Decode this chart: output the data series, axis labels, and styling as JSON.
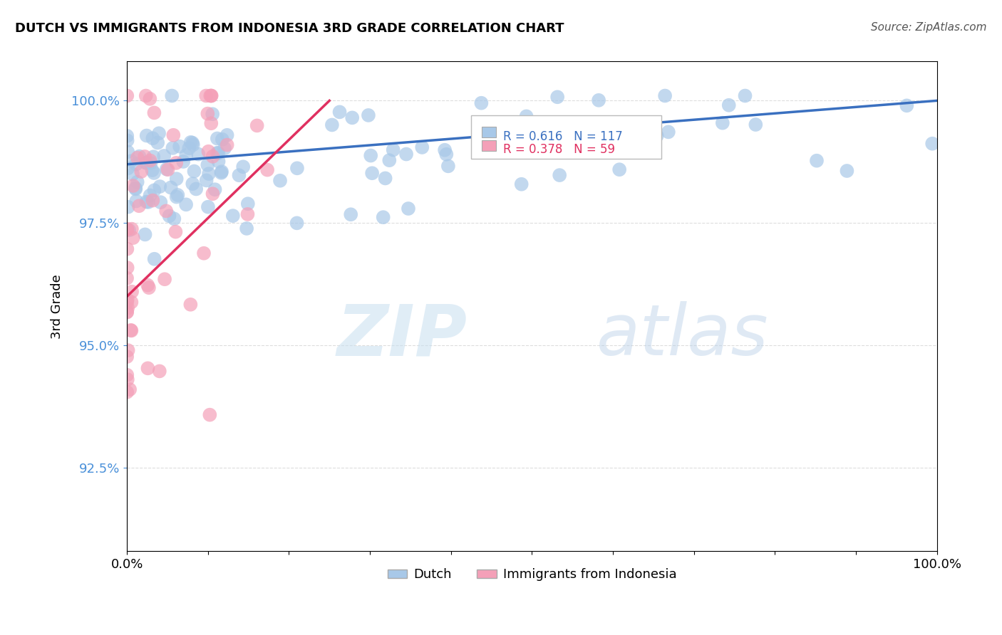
{
  "title": "DUTCH VS IMMIGRANTS FROM INDONESIA 3RD GRADE CORRELATION CHART",
  "source": "Source: ZipAtlas.com",
  "ylabel": "3rd Grade",
  "ytick_labels": [
    "100.0%",
    "97.5%",
    "95.0%",
    "92.5%"
  ],
  "ytick_values": [
    1.0,
    0.975,
    0.95,
    0.925
  ],
  "xlim": [
    0.0,
    1.0
  ],
  "ylim": [
    0.908,
    1.008
  ],
  "legend_dutch": "Dutch",
  "legend_indonesia": "Immigrants from Indonesia",
  "r_dutch": 0.616,
  "n_dutch": 117,
  "r_indonesia": 0.378,
  "n_indonesia": 59,
  "dutch_color": "#a8c8e8",
  "indonesia_color": "#f4a0b8",
  "dutch_line_color": "#3a70c0",
  "indonesia_line_color": "#e03060",
  "watermark_zip": "ZIP",
  "watermark_atlas": "atlas",
  "background_color": "#ffffff",
  "grid_color": "#dddddd",
  "ytick_color": "#4a90d9",
  "title_fontsize": 13,
  "axis_fontsize": 13,
  "legend_fontsize": 12
}
